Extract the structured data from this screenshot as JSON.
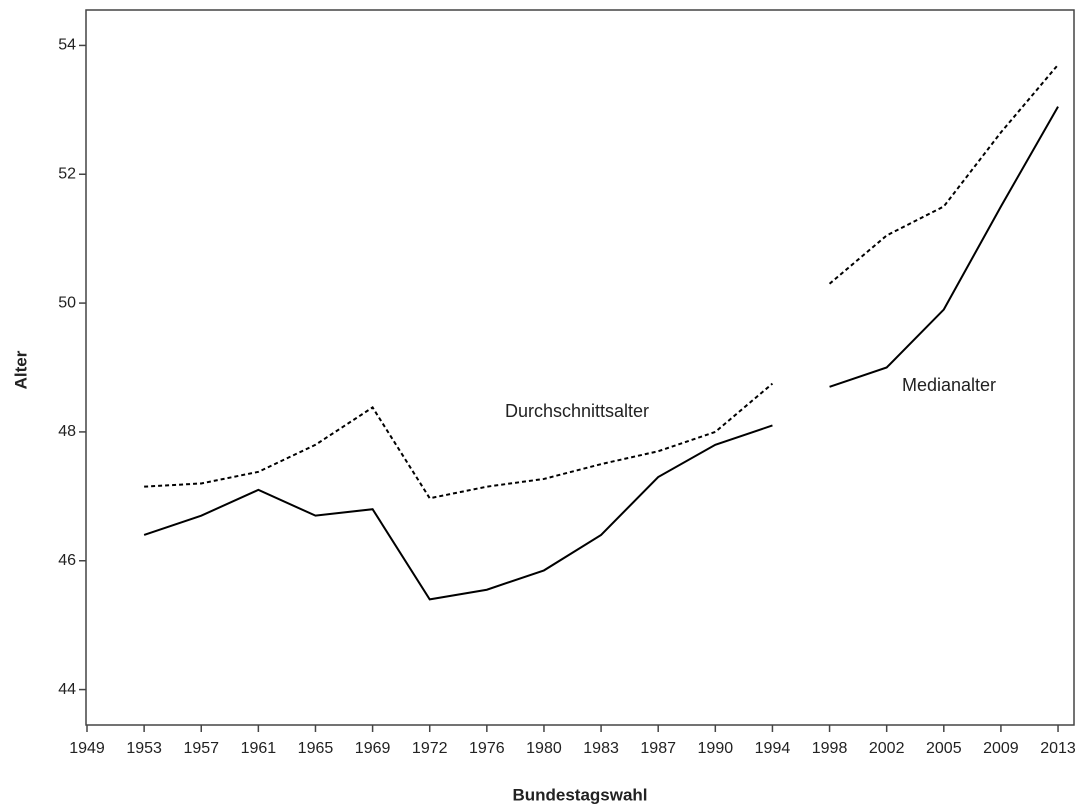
{
  "chart_data": {
    "type": "line",
    "x_label": "Bundestagswahl",
    "y_label": "Alter",
    "categories": [
      "1949",
      "1953",
      "1957",
      "1961",
      "1965",
      "1969",
      "1972",
      "1976",
      "1980",
      "1983",
      "1987",
      "1990",
      "1994",
      "1998",
      "2002",
      "2005",
      "2009",
      "2013"
    ],
    "series": [
      {
        "name": "Durchschnittsalter",
        "color": "#000000",
        "style": "dotted",
        "values": [
          null,
          47.15,
          47.2,
          47.38,
          47.8,
          48.38,
          46.97,
          47.15,
          47.27,
          47.5,
          47.7,
          48.0,
          48.75,
          50.3,
          51.05,
          51.5,
          52.65,
          53.7
        ]
      },
      {
        "name": "Medianalter",
        "color": "#000000",
        "style": "solid",
        "values": [
          null,
          46.4,
          46.7,
          47.1,
          46.7,
          46.8,
          45.4,
          45.55,
          45.85,
          46.4,
          47.3,
          47.8,
          48.1,
          48.7,
          49.0,
          49.9,
          51.5,
          53.05
        ]
      }
    ],
    "break_after": "1994",
    "ylim": [
      43.45,
      54.55
    ],
    "yticks": [
      44,
      46,
      48,
      50,
      52,
      54
    ],
    "grid": false
  }
}
